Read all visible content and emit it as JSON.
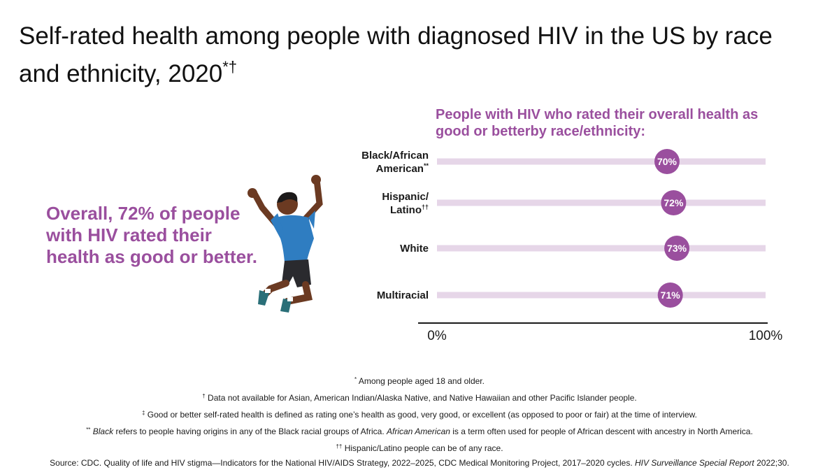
{
  "title": "Self-rated health among people with diagnosed HIV in the US by race and ethnicity, 2020",
  "title_marks": "*†",
  "overall_text": "Overall, 72% of people with HIV rated their health as good or better.",
  "colors": {
    "accent": "#9a4f9e",
    "track": "#e6d6e8",
    "axis": "#1a1a1a"
  },
  "chart_data": {
    "type": "dot",
    "title": "People with HIV who rated their overall health as good or betterby race/ethnicity:",
    "xlim": [
      0,
      100
    ],
    "x_tick_labels": [
      "0%",
      "100%"
    ],
    "categories": [
      {
        "line1": "Black/African",
        "line2": "American",
        "mark": "**"
      },
      {
        "line1": "Hispanic/",
        "line2": "Latino",
        "mark": "††"
      },
      {
        "line1": "White",
        "line2": "",
        "mark": ""
      },
      {
        "line1": "Multiracial",
        "line2": "",
        "mark": ""
      }
    ],
    "values": [
      70,
      72,
      73,
      71
    ],
    "value_labels": [
      "70%",
      "72%",
      "73%",
      "71%"
    ]
  },
  "footnotes": {
    "n1_mark": "*",
    "n1": " Among people aged 18 and older.",
    "n2_mark": "†",
    "n2": " Data not available for Asian, American Indian/Alaska Native, and Native Hawaiian and other Pacific Islander people.",
    "n3_mark": "‡",
    "n3": " Good or better self-rated health is defined as rating one’s health as good, very good, or excellent (as opposed to poor or fair) at the time of interview.",
    "n4_mark": "**",
    "n4_a": "Black",
    "n4_b": " refers to people having origins in any of the Black racial groups of Africa. ",
    "n4_c": "African American",
    "n4_d": " is a term often used for people of African descent with ancestry in North America.",
    "n5_mark": "††",
    "n5": " Hispanic/Latino people can be of any race.",
    "source_a": "Source: CDC. Quality of life and HIV stigma—Indicators for the National HIV/AIDS Strategy, 2022–2025, CDC Medical Monitoring Project, 2017–2020 cycles. ",
    "source_b": "HIV Surveillance Special Report",
    "source_c": " 2022;30."
  }
}
